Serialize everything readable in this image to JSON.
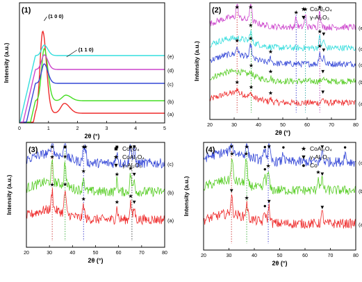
{
  "chart_data": [
    {
      "type": "line",
      "panel_label": "(1)",
      "ylabel": "Intensity (a.u.)",
      "xlabel": "2θ (°)",
      "xlim": [
        0,
        5
      ],
      "xticks": [
        "0",
        "1",
        "2",
        "3",
        "4",
        "5"
      ],
      "peak_annotations": [
        {
          "text": "(1 0 0)",
          "x": 0.8
        },
        {
          "text": "(1 1 0)",
          "x": 1.55
        }
      ],
      "series": [
        {
          "name": "(a)",
          "color": "#ee2a2a",
          "peaks": [
            [
              0.8,
              1.0
            ],
            [
              1.55,
              0.12
            ]
          ]
        },
        {
          "name": "(b)",
          "color": "#44dd22",
          "peaks": [
            [
              0.85,
              0.75
            ],
            [
              1.6,
              0.08
            ]
          ]
        },
        {
          "name": "(c)",
          "color": "#3346d6",
          "peaks": [
            [
              0.85,
              0.35
            ]
          ]
        },
        {
          "name": "(d)",
          "color": "#cc44cc",
          "peaks": [
            [
              0.85,
              0.3
            ]
          ]
        },
        {
          "name": "(e)",
          "color": "#33dddd",
          "peaks": [
            [
              0.85,
              0.25
            ]
          ]
        }
      ]
    },
    {
      "type": "line",
      "panel_label": "(2)",
      "ylabel": "Intensity (a.u.)",
      "xlabel": "2θ (°)",
      "xlim": [
        20,
        80
      ],
      "xticks": [
        "20",
        "30",
        "40",
        "50",
        "60",
        "70",
        "80"
      ],
      "legend": [
        {
          "marker": "★",
          "text": "CoAl₂O₄"
        },
        {
          "marker": "▼",
          "text": "γ-Al₂O₃"
        }
      ],
      "series": [
        {
          "name": "(a)",
          "color": "#ee2a2a",
          "peaks": [
            [
              31.2,
              0.25
            ],
            [
              37,
              0.2
            ],
            [
              45,
              0.15
            ],
            [
              66.5,
              0.25
            ]
          ]
        },
        {
          "name": "(b)",
          "color": "#55cc22",
          "peaks": [
            [
              37,
              0.2
            ],
            [
              45,
              0.15
            ],
            [
              66.5,
              0.2
            ]
          ]
        },
        {
          "name": "(c)",
          "color": "#3346d6",
          "peaks": [
            [
              31.2,
              0.3
            ],
            [
              36.8,
              0.5
            ],
            [
              45,
              0.2
            ],
            [
              65.2,
              0.45
            ],
            [
              66.8,
              0.3
            ]
          ]
        },
        {
          "name": "(d)",
          "color": "#33dddd",
          "peaks": [
            [
              36.8,
              0.4
            ],
            [
              65.2,
              0.4
            ],
            [
              66.8,
              0.3
            ]
          ]
        },
        {
          "name": "(e)",
          "color": "#cc44cc",
          "peaks": [
            [
              31.2,
              0.5
            ],
            [
              36.8,
              0.7
            ],
            [
              55.5,
              0.3
            ],
            [
              59.3,
              0.4
            ],
            [
              65.2,
              0.6
            ]
          ]
        }
      ],
      "guide_lines": [
        {
          "x": 31.2,
          "color": "#cc3333"
        },
        {
          "x": 37,
          "color": "#33aa33"
        },
        {
          "x": 55.5,
          "color": "#3333cc"
        },
        {
          "x": 59.3,
          "color": "#33aaaa"
        },
        {
          "x": 65.2,
          "color": "#aa33aa"
        }
      ]
    },
    {
      "type": "line",
      "panel_label": "(3)",
      "ylabel": "Intensity (a.u.)",
      "xlabel": "2θ (°)",
      "xlim": [
        20,
        80
      ],
      "xticks": [
        "20",
        "30",
        "40",
        "50",
        "60",
        "70",
        "80"
      ],
      "legend": [
        {
          "marker": "■",
          "text": "Co₃O₄"
        },
        {
          "marker": "★",
          "text": "CoAl₂O₄"
        },
        {
          "marker": "▼",
          "text": "γ-Al₂O₃"
        }
      ],
      "series": [
        {
          "name": "(a)",
          "color": "#ee2a2a",
          "peaks": [
            [
              31.2,
              0.5
            ],
            [
              36.8,
              0.6
            ],
            [
              44.8,
              0.35
            ],
            [
              59.3,
              0.3
            ],
            [
              65.2,
              0.45
            ],
            [
              66.8,
              0.3
            ]
          ]
        },
        {
          "name": "(b)",
          "color": "#55cc22",
          "peaks": [
            [
              31.2,
              0.5
            ],
            [
              36.8,
              0.6
            ],
            [
              44.8,
              0.35
            ],
            [
              59.3,
              0.3
            ],
            [
              65.2,
              0.45
            ],
            [
              66.8,
              0.3
            ]
          ]
        },
        {
          "name": "(c)",
          "color": "#3346d6",
          "peaks": [
            [
              31.2,
              0.5
            ],
            [
              36.8,
              0.7
            ],
            [
              44.8,
              0.35
            ],
            [
              45.6,
              0.3
            ],
            [
              59.3,
              0.3
            ],
            [
              65.2,
              0.5
            ],
            [
              66.8,
              0.35
            ]
          ]
        }
      ],
      "guide_lines": [
        {
          "x": 31.2,
          "color": "#cc3333"
        },
        {
          "x": 36.8,
          "color": "#33aa33"
        },
        {
          "x": 44.8,
          "color": "#3333cc"
        },
        {
          "x": 65.8,
          "color": "#333333"
        }
      ]
    },
    {
      "type": "line",
      "panel_label": "(4)",
      "ylabel": "Intensity (a.u.)",
      "xlabel": "2θ (°)",
      "xlim": [
        20,
        80
      ],
      "xticks": [
        "20",
        "30",
        "40",
        "50",
        "60",
        "70",
        "80"
      ],
      "legend": [
        {
          "marker": "★",
          "text": "CoAl₂O₄"
        },
        {
          "marker": "▼",
          "text": "γ-Al₂O₃"
        },
        {
          "marker": "●",
          "text": "Co"
        }
      ],
      "series": [
        {
          "name": "(a)",
          "color": "#ee2a2a",
          "peaks": [
            [
              31,
              0.5
            ],
            [
              37,
              0.4
            ],
            [
              44.2,
              0.3
            ],
            [
              45.8,
              0.45
            ],
            [
              66.8,
              0.3
            ]
          ]
        },
        {
          "name": "(b)",
          "color": "#55cc22",
          "peaks": [
            [
              31.2,
              0.6
            ],
            [
              36.8,
              0.7
            ],
            [
              44.2,
              0.4
            ],
            [
              45.5,
              0.5
            ],
            [
              65.2,
              0.35
            ],
            [
              66.8,
              0.3
            ]
          ]
        },
        {
          "name": "(c)",
          "color": "#3346d6",
          "peaks": [
            [
              31,
              0.4
            ],
            [
              37,
              0.45
            ],
            [
              44.2,
              0.4
            ],
            [
              45.8,
              0.5
            ],
            [
              51.5,
              0.25
            ],
            [
              66.8,
              0.3
            ],
            [
              75.8,
              0.25
            ]
          ]
        }
      ],
      "guide_lines": [
        {
          "x": 31,
          "color": "#cc3333"
        },
        {
          "x": 37,
          "color": "#33aa33"
        },
        {
          "x": 45.5,
          "color": "#3333cc"
        }
      ]
    }
  ]
}
